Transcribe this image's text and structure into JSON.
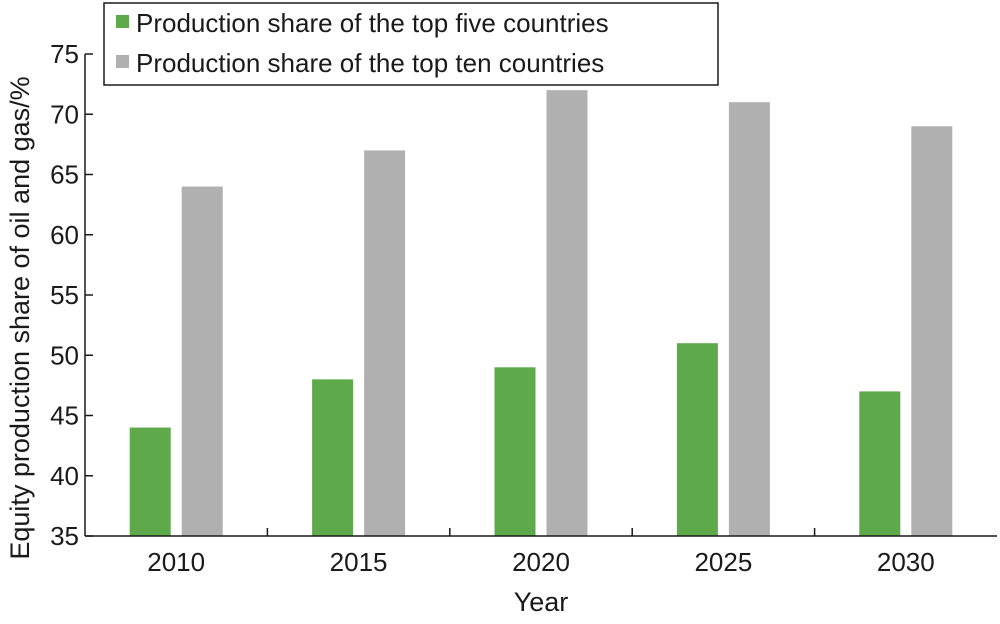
{
  "chart_data": {
    "type": "bar",
    "categories": [
      "2010",
      "2015",
      "2020",
      "2025",
      "2030"
    ],
    "series": [
      {
        "name": "Production share of the top five countries",
        "values": [
          44,
          48,
          49,
          51,
          47
        ],
        "color": "#5eaa4b"
      },
      {
        "name": "Production share of the top ten countries",
        "values": [
          64,
          67,
          72,
          71,
          69
        ],
        "color": "#b0b0b0"
      }
    ],
    "xlabel": "Year",
    "ylabel": "Equity production share of oil and gas/%",
    "ylim": [
      35,
      75
    ],
    "yticks": [
      35,
      40,
      45,
      50,
      55,
      60,
      65,
      70,
      75
    ],
    "legend_position": "top-left",
    "grid": false
  }
}
